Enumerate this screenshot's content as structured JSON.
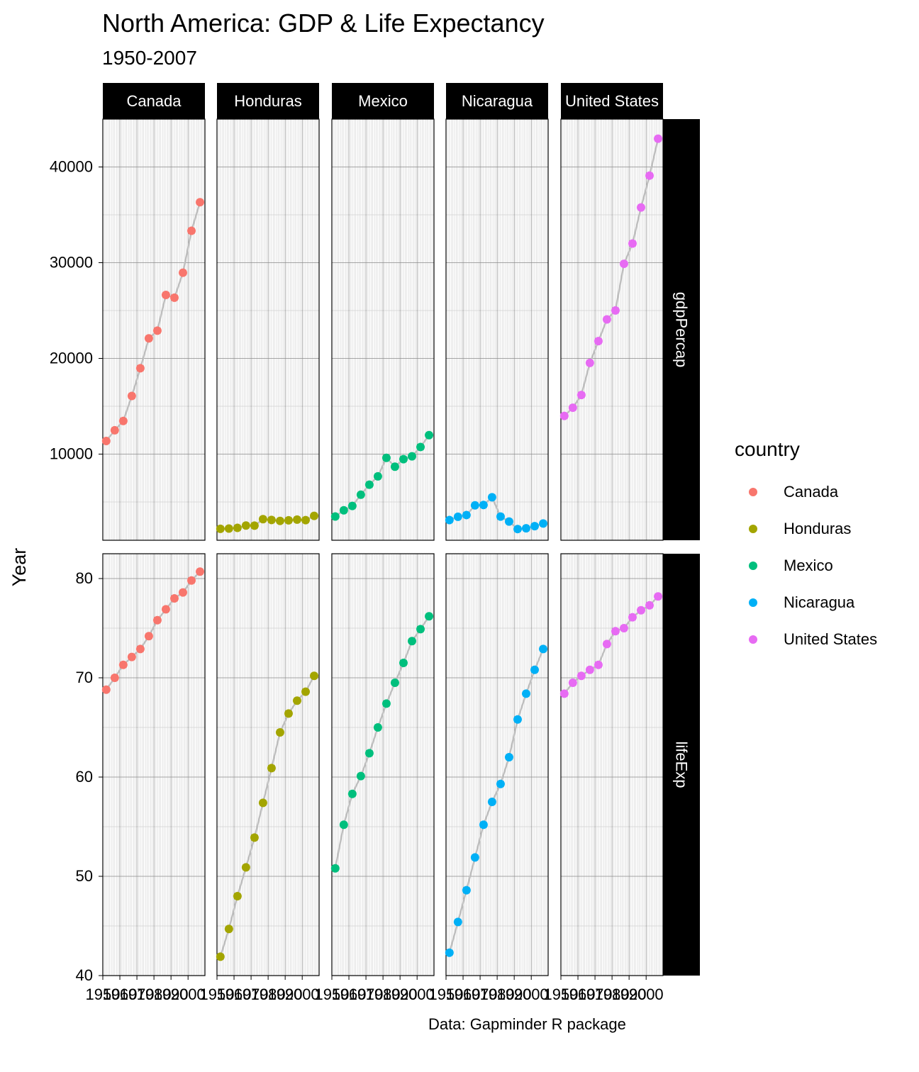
{
  "chart_data": {
    "type": "scatter",
    "title": "North America: GDP & Life Expectancy",
    "subtitle": "1950-2007",
    "ylabel": "Year",
    "xlabel": "",
    "caption": "Data: Gapminder R package",
    "legend_title": "country",
    "legend_position": "right",
    "grid": true,
    "x": [
      1952,
      1957,
      1962,
      1967,
      1972,
      1977,
      1982,
      1987,
      1992,
      1997,
      2002,
      2007
    ],
    "x_ticks": [
      1950,
      1960,
      1970,
      1980,
      1990,
      2000
    ],
    "facet_cols": [
      "Canada",
      "Honduras",
      "Mexico",
      "Nicaragua",
      "United States"
    ],
    "facet_rows": [
      {
        "name": "gdpPercap",
        "ylim": [
          1000,
          45000
        ],
        "y_ticks": [
          10000,
          20000,
          30000,
          40000
        ]
      },
      {
        "name": "lifeExp",
        "ylim": [
          40,
          82.5
        ],
        "y_ticks": [
          40,
          50,
          60,
          70,
          80
        ]
      }
    ],
    "series": [
      {
        "name": "Canada",
        "color": "#F8766D",
        "gdpPercap": [
          11367,
          12490,
          13462,
          16077,
          18971,
          22091,
          22899,
          26627,
          26343,
          28955,
          33329,
          36319
        ],
        "lifeExp": [
          68.8,
          70.0,
          71.3,
          72.1,
          72.9,
          74.2,
          75.8,
          76.9,
          78.0,
          78.6,
          79.8,
          80.7
        ]
      },
      {
        "name": "Honduras",
        "color": "#A3A500",
        "gdpPercap": [
          2195,
          2221,
          2292,
          2538,
          2529,
          3203,
          3121,
          3023,
          3082,
          3160,
          3099,
          3548
        ],
        "lifeExp": [
          41.9,
          44.7,
          48.0,
          50.9,
          53.9,
          57.4,
          60.9,
          64.5,
          66.4,
          67.7,
          68.6,
          70.2
        ]
      },
      {
        "name": "Mexico",
        "color": "#00BF7D",
        "gdpPercap": [
          3478,
          4132,
          4582,
          5755,
          6809,
          7675,
          9611,
          8688,
          9472,
          9767,
          10742,
          11978
        ],
        "lifeExp": [
          50.8,
          55.2,
          58.3,
          60.1,
          62.4,
          65.0,
          67.4,
          69.5,
          71.5,
          73.7,
          74.9,
          76.2
        ]
      },
      {
        "name": "Nicaragua",
        "color": "#00B0F6",
        "gdpPercap": [
          3112,
          3457,
          3634,
          4644,
          4689,
          5487,
          3471,
          2955,
          2171,
          2253,
          2475,
          2749
        ],
        "lifeExp": [
          42.3,
          45.4,
          48.6,
          51.9,
          55.2,
          57.5,
          59.3,
          62.0,
          65.8,
          68.4,
          70.8,
          72.9
        ]
      },
      {
        "name": "United States",
        "color": "#E76BF3",
        "gdpPercap": [
          13990,
          14847,
          16173,
          19530,
          21806,
          24073,
          25010,
          29884,
          32004,
          35767,
          39097,
          42952
        ],
        "lifeExp": [
          68.4,
          69.5,
          70.2,
          70.8,
          71.3,
          73.4,
          74.7,
          75.0,
          76.1,
          76.8,
          77.3,
          78.2
        ]
      }
    ]
  }
}
